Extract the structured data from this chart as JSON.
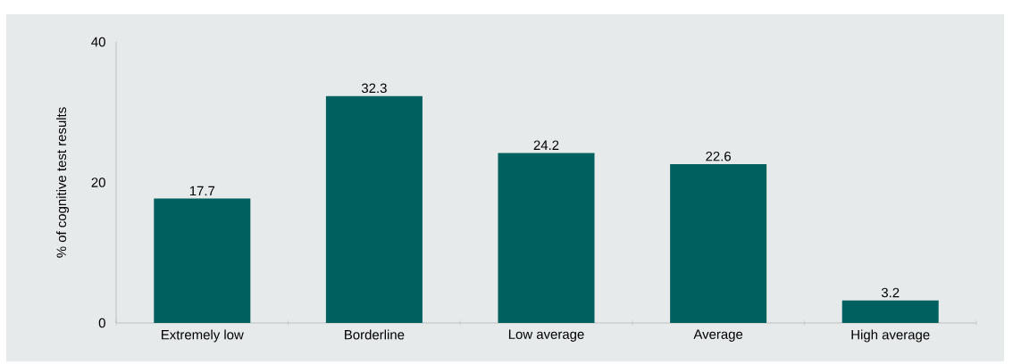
{
  "chart_data": {
    "type": "bar",
    "ylabel": "% of cognitive test results",
    "categories": [
      "Extremely low",
      "Borderline",
      "Low average",
      "Average",
      "High average"
    ],
    "values": [
      17.7,
      32.3,
      24.2,
      22.6,
      3.2
    ],
    "color": "#006060",
    "ylim": [
      0,
      40
    ],
    "yticks": [
      0,
      20,
      40
    ],
    "data_labels": true
  }
}
